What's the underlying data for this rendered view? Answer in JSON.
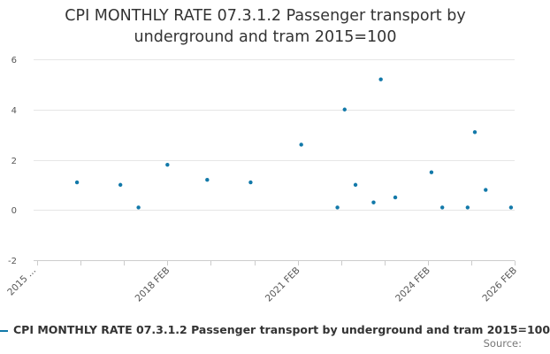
{
  "title_lines": [
    "CPI MONTHLY RATE 07.3.1.2 Passenger transport by",
    "underground and tram 2015=100"
  ],
  "chart_data": {
    "type": "scatter",
    "title": "CPI MONTHLY RATE 07.3.1.2 Passenger transport by underground and tram 2015=100",
    "xlabel": "",
    "ylabel": "",
    "ylim": [
      -2,
      6
    ],
    "yticks": [
      -2,
      0,
      2,
      4,
      6
    ],
    "xlim": [
      "2015 JAN",
      "2026 FEB"
    ],
    "xticks": [
      {
        "date": "2015 JAN",
        "label": "2015 ..."
      },
      {
        "date": "2018 FEB",
        "label": "2018 FEB"
      },
      {
        "date": "2021 FEB",
        "label": "2021 FEB"
      },
      {
        "date": "2024 FEB",
        "label": "2024 FEB"
      },
      {
        "date": "2026 FEB",
        "label": "2026 FEB"
      }
    ],
    "grid": true,
    "legend_position": "bottom",
    "series": [
      {
        "name": "CPI MONTHLY RATE 07.3.1.2 Passenger transport by underground and tram 2015=100",
        "color": "#1279a9",
        "points": [
          {
            "x": "2016 JAN",
            "y": 1.1
          },
          {
            "x": "2017 JAN",
            "y": 1.0
          },
          {
            "x": "2017 JUN",
            "y": 0.1
          },
          {
            "x": "2018 FEB",
            "y": 1.8
          },
          {
            "x": "2019 JAN",
            "y": 1.2
          },
          {
            "x": "2020 JAN",
            "y": 1.1
          },
          {
            "x": "2021 MAR",
            "y": 2.6
          },
          {
            "x": "2022 JAN",
            "y": 0.1
          },
          {
            "x": "2022 MAR",
            "y": 4.0
          },
          {
            "x": "2022 JUN",
            "y": 1.0
          },
          {
            "x": "2022 NOV",
            "y": 0.3
          },
          {
            "x": "2023 JAN",
            "y": 5.2
          },
          {
            "x": "2023 MAY",
            "y": 0.5
          },
          {
            "x": "2024 MAR",
            "y": 1.5
          },
          {
            "x": "2024 JUN",
            "y": 0.1
          },
          {
            "x": "2025 JAN",
            "y": 0.1
          },
          {
            "x": "2025 MAR",
            "y": 3.1
          },
          {
            "x": "2025 JUN",
            "y": 0.8
          },
          {
            "x": "2026 JAN",
            "y": 0.1
          }
        ]
      }
    ]
  },
  "legend": {
    "label": "CPI MONTHLY RATE 07.3.1.2 Passenger transport by underground and tram 2015=100"
  },
  "source_label": "Source:"
}
